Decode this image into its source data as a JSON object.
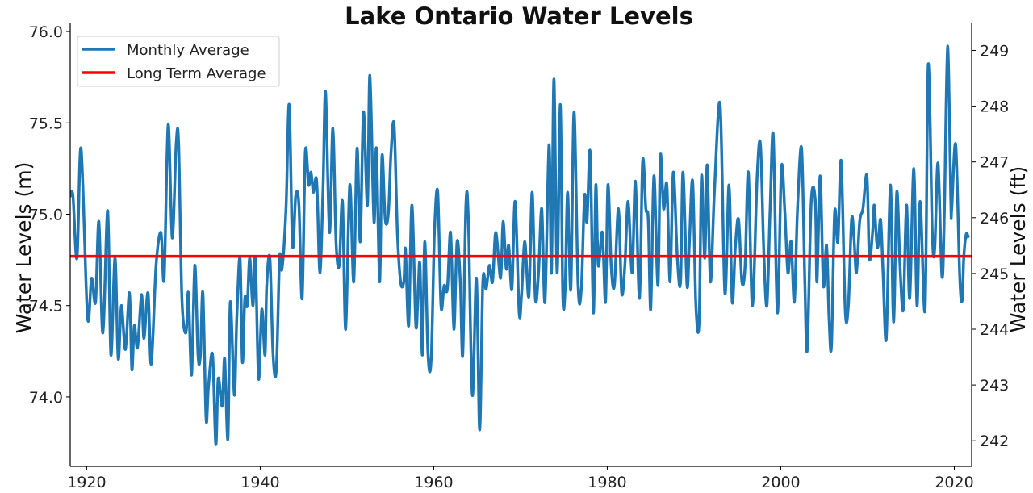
{
  "chart_data": {
    "type": "line",
    "title": "Lake Ontario Water Levels",
    "ylabel": "Water Levels (m)",
    "ylabel_right": "Water Levels (ft)",
    "xlabel": "",
    "xlim": [
      1918.1,
      2022.0
    ],
    "ylim": [
      73.62,
      76.04
    ],
    "ylim_right_ft": [
      241.54,
      249.47
    ],
    "x_ticks": [
      1920,
      1940,
      1960,
      1980,
      2000,
      2020
    ],
    "x_tick_labels": [
      "1920",
      "1940",
      "1960",
      "1980",
      "2000",
      "2020"
    ],
    "y_ticks": [
      74.0,
      74.5,
      75.0,
      75.5,
      76.0
    ],
    "y_tick_labels": [
      "74.0",
      "74.5",
      "75.0",
      "75.5",
      "76.0"
    ],
    "y_right_ticks": [
      242,
      243,
      244,
      245,
      246,
      247,
      248,
      249
    ],
    "y_right_tick_labels": [
      "242",
      "243",
      "244",
      "245",
      "246",
      "247",
      "248",
      "249"
    ],
    "grid": false,
    "legend_position": "top-left",
    "series": [
      {
        "name": "Monthly Average",
        "color": "#1f77b4",
        "x": [
          1918.14,
          1918.42,
          1918.88,
          1919.35,
          1920.09,
          1920.56,
          1921.02,
          1921.4,
          1921.86,
          1922.42,
          1922.79,
          1923.26,
          1923.63,
          1924.0,
          1924.46,
          1924.93,
          1925.21,
          1925.49,
          1925.86,
          1926.32,
          1926.6,
          1927.07,
          1927.44,
          1928.0,
          1928.56,
          1928.93,
          1929.39,
          1929.86,
          1930.32,
          1930.6,
          1930.97,
          1931.44,
          1931.72,
          1932.09,
          1932.46,
          1932.83,
          1933.11,
          1933.39,
          1933.76,
          1934.04,
          1934.51,
          1934.88,
          1935.16,
          1935.62,
          1935.9,
          1936.28,
          1936.55,
          1937.02,
          1937.3,
          1937.67,
          1937.95,
          1938.23,
          1938.51,
          1938.79,
          1939.16,
          1939.44,
          1939.81,
          1940.18,
          1940.55,
          1940.74,
          1941.11,
          1941.48,
          1941.86,
          1942.23,
          1942.51,
          1942.97,
          1943.34,
          1943.72,
          1944.09,
          1944.46,
          1944.83,
          1945.2,
          1945.58,
          1945.85,
          1946.13,
          1946.51,
          1946.88,
          1947.25,
          1947.53,
          1947.99,
          1948.37,
          1948.74,
          1949.11,
          1949.48,
          1949.85,
          1950.32,
          1950.78,
          1951.16,
          1951.53,
          1951.9,
          1952.36,
          1952.64,
          1953.11,
          1953.39,
          1953.76,
          1954.04,
          1954.41,
          1954.78,
          1955.06,
          1955.43,
          1955.81,
          1956.18,
          1956.55,
          1956.74,
          1957.11,
          1957.48,
          1957.94,
          1958.22,
          1958.41,
          1958.69,
          1958.97,
          1959.34,
          1959.71,
          1960.08,
          1960.46,
          1960.83,
          1961.2,
          1961.57,
          1961.94,
          1962.32,
          1962.69,
          1963.06,
          1963.34,
          1963.71,
          1963.99,
          1964.45,
          1964.92,
          1965.29,
          1965.66,
          1966.04,
          1966.41,
          1966.78,
          1967.15,
          1967.71,
          1967.99,
          1968.36,
          1968.64,
          1969.01,
          1969.38,
          1969.85,
          1970.13,
          1970.5,
          1970.96,
          1971.34,
          1971.71,
          1972.08,
          1972.45,
          1972.82,
          1973.29,
          1973.57,
          1973.85,
          1974.22,
          1974.59,
          1974.87,
          1975.15,
          1975.43,
          1975.8,
          1976.17,
          1976.64,
          1977.01,
          1977.38,
          1977.66,
          1978.03,
          1978.4,
          1978.68,
          1978.96,
          1979.43,
          1979.8,
          1980.08,
          1980.45,
          1980.82,
          1981.29,
          1981.66,
          1982.03,
          1982.4,
          1982.87,
          1983.24,
          1983.71,
          1984.08,
          1984.45,
          1984.73,
          1985.01,
          1985.38,
          1985.84,
          1986.12,
          1986.5,
          1986.87,
          1987.24,
          1987.61,
          1988.08,
          1988.45,
          1988.73,
          1989.19,
          1989.47,
          1989.84,
          1990.22,
          1990.59,
          1990.87,
          1991.24,
          1991.52,
          1991.89,
          1992.35,
          1993.01,
          1993.56,
          1994.03,
          1994.4,
          1994.77,
          1995.14,
          1995.52,
          1995.89,
          1996.26,
          1996.73,
          1997.28,
          1997.66,
          1998.03,
          1998.4,
          1998.77,
          1999.14,
          1999.61,
          2000.07,
          2000.45,
          2000.82,
          2001.19,
          2001.56,
          2001.93,
          2002.4,
          2002.77,
          2003.05,
          2003.51,
          2003.98,
          2004.17,
          2004.54,
          2004.91,
          2005.28,
          2005.56,
          2005.84,
          2006.21,
          2006.58,
          2006.96,
          2007.42,
          2007.79,
          2008.16,
          2008.44,
          2008.72,
          2009.09,
          2009.47,
          2009.93,
          2010.21,
          2010.58,
          2010.77,
          2011.05,
          2011.23,
          2011.51,
          2011.79,
          2012.16,
          2012.63,
          2013.0,
          2013.37,
          2013.74,
          2014.12,
          2014.49,
          2014.86,
          2015.33,
          2015.7,
          2016.07,
          2016.63,
          2017.0,
          2017.46,
          2017.74,
          2018.12,
          2018.58,
          2018.86,
          2019.23,
          2019.6,
          2019.7,
          2020.16,
          2020.63,
          2020.91,
          2021.09,
          2021.37,
          2021.65
        ],
        "y": [
          75.1,
          75.1,
          74.76,
          75.36,
          74.44,
          74.65,
          74.52,
          74.96,
          74.35,
          75.02,
          74.23,
          74.76,
          74.21,
          74.5,
          74.26,
          74.57,
          74.15,
          74.39,
          74.27,
          74.56,
          74.32,
          74.57,
          74.18,
          74.72,
          74.9,
          74.65,
          75.49,
          74.87,
          75.39,
          75.38,
          74.54,
          74.35,
          74.57,
          74.12,
          74.72,
          74.23,
          74.23,
          74.57,
          73.88,
          74.06,
          74.23,
          73.74,
          74.1,
          73.95,
          74.21,
          73.77,
          74.52,
          74.01,
          74.43,
          74.76,
          74.19,
          74.54,
          74.5,
          74.76,
          74.5,
          74.76,
          74.1,
          74.48,
          74.23,
          74.6,
          74.76,
          74.23,
          74.15,
          74.76,
          74.7,
          75.03,
          75.6,
          74.83,
          75.1,
          75.05,
          74.54,
          75.34,
          75.16,
          75.23,
          75.12,
          75.18,
          74.68,
          75.16,
          75.67,
          74.9,
          75.47,
          74.85,
          74.72,
          75.07,
          74.37,
          75.16,
          74.63,
          75.36,
          74.85,
          75.56,
          75.05,
          75.76,
          74.96,
          75.36,
          74.63,
          75.32,
          74.97,
          75.01,
          75.32,
          75.49,
          74.9,
          74.63,
          74.63,
          74.81,
          74.39,
          75.05,
          74.39,
          74.61,
          74.72,
          74.23,
          74.85,
          74.23,
          74.21,
          74.9,
          75.12,
          74.5,
          74.61,
          74.59,
          74.9,
          74.37,
          74.85,
          74.63,
          74.23,
          75.05,
          74.97,
          74.01,
          74.65,
          73.82,
          74.63,
          74.59,
          74.72,
          74.63,
          74.9,
          74.65,
          74.96,
          74.7,
          74.83,
          74.59,
          75.07,
          74.46,
          74.57,
          74.85,
          74.55,
          75.12,
          74.54,
          74.68,
          75.03,
          74.52,
          75.38,
          74.68,
          75.74,
          74.68,
          75.6,
          74.57,
          74.59,
          75.12,
          74.59,
          75.56,
          74.61,
          74.59,
          75.1,
          74.96,
          75.34,
          74.46,
          75.16,
          74.72,
          74.9,
          74.52,
          75.16,
          74.72,
          74.61,
          75.03,
          74.57,
          74.72,
          75.07,
          74.68,
          75.18,
          74.54,
          75.29,
          75.03,
          74.97,
          74.48,
          75.21,
          74.61,
          75.32,
          75.03,
          75.16,
          74.63,
          75.23,
          74.76,
          74.63,
          75.23,
          74.61,
          74.85,
          75.18,
          74.5,
          74.41,
          75.21,
          74.76,
          75.27,
          74.63,
          75.12,
          75.6,
          74.57,
          75.16,
          74.52,
          74.83,
          74.97,
          74.63,
          74.72,
          75.23,
          74.5,
          75.21,
          75.38,
          74.81,
          74.5,
          75.03,
          75.43,
          74.46,
          75.25,
          75.03,
          74.68,
          74.85,
          74.52,
          75.03,
          75.36,
          74.63,
          74.26,
          75.07,
          75.07,
          74.63,
          75.21,
          74.61,
          74.83,
          74.43,
          74.28,
          75.01,
          74.85,
          75.29,
          74.48,
          74.5,
          74.97,
          74.87,
          74.68,
          74.96,
          75.03,
          75.21,
          74.76,
          74.9,
          75.05,
          74.85,
          74.83,
          74.97,
          74.68,
          74.32,
          75.16,
          74.41,
          75.12,
          74.72,
          74.48,
          75.05,
          74.54,
          75.25,
          74.5,
          75.07,
          74.48,
          75.82,
          74.9,
          74.81,
          75.28,
          74.66,
          75.02,
          75.92,
          75.07,
          75.03,
          75.38,
          74.65,
          74.53,
          74.76,
          74.89,
          74.87
        ]
      },
      {
        "name": "Long Term Average",
        "color": "#ff0000",
        "value": 74.77
      }
    ]
  }
}
